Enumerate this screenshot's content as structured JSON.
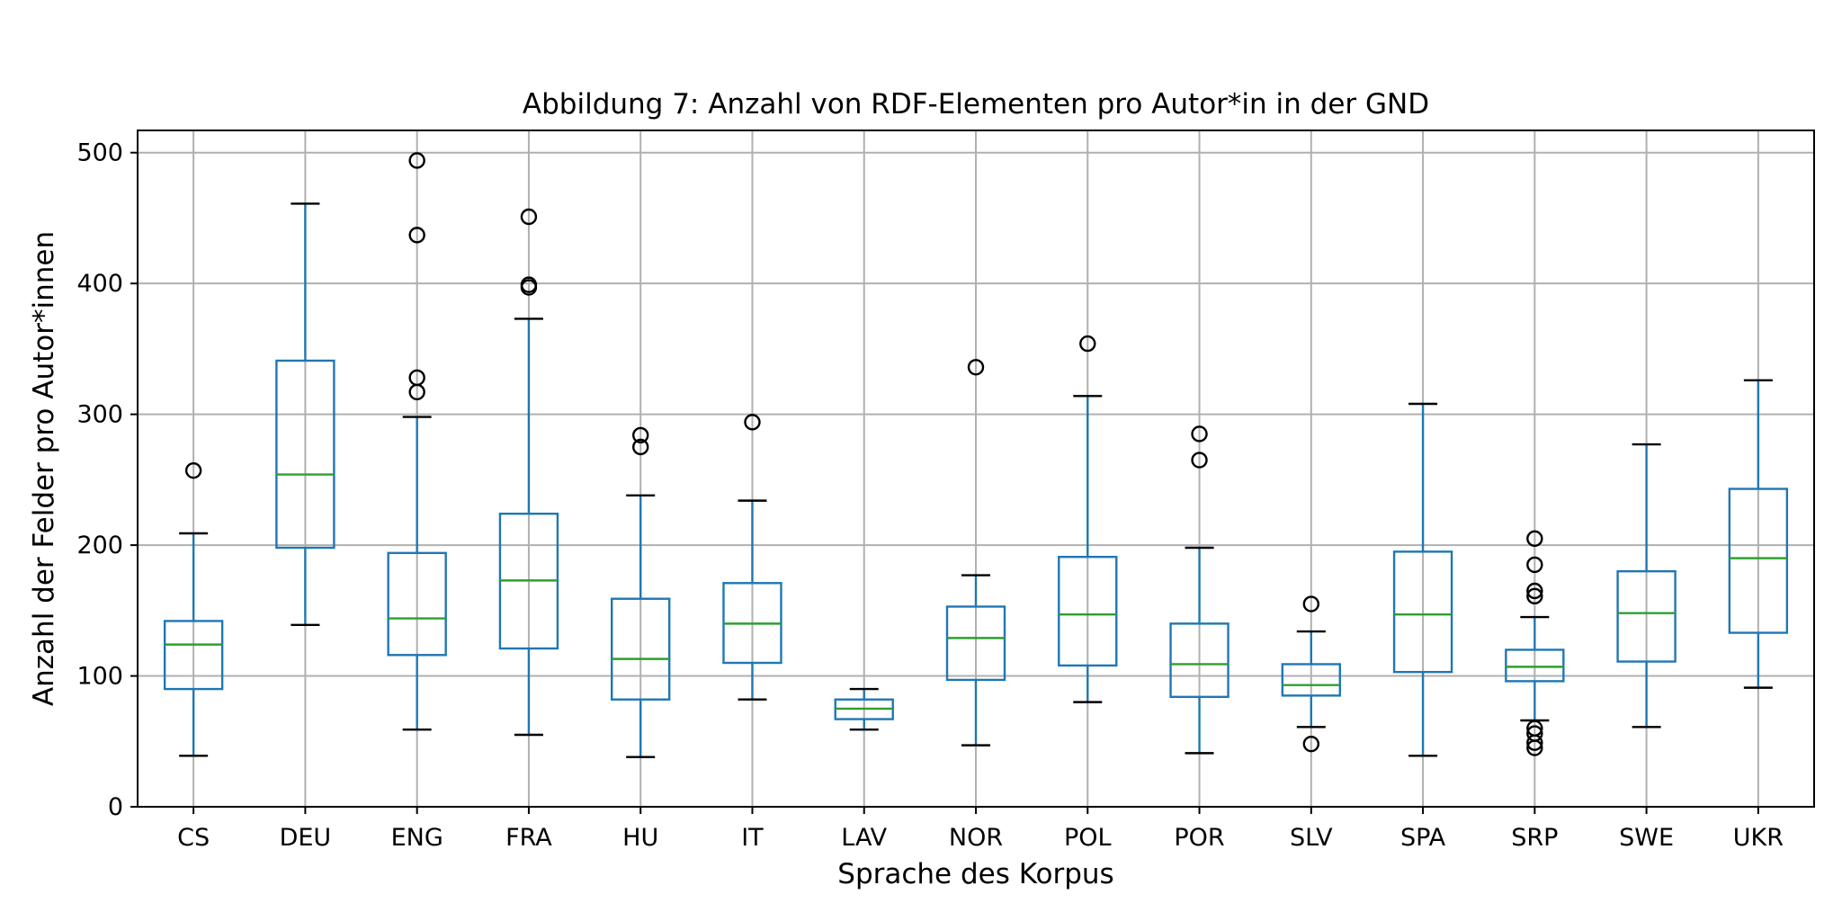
{
  "chart_data": {
    "type": "box",
    "title": "Abbildung 7: Anzahl von RDF-Elementen pro Autor*in in der GND",
    "xlabel": "Sprache des Korpus",
    "ylabel": "Anzahl der Felder pro Autor*innen",
    "ylim": [
      0,
      517
    ],
    "yticks": [
      0,
      100,
      200,
      300,
      400,
      500
    ],
    "grid": true,
    "colors": {
      "box": "#1f77b4",
      "median": "#2ca02c",
      "whisker_cap": "#000000",
      "flier": "#000000",
      "grid": "#b0b0b0"
    },
    "boxes": [
      {
        "category": "CS",
        "whislo": 39,
        "q1": 90,
        "med": 124,
        "q3": 142,
        "whishi": 209,
        "fliers": [
          257
        ]
      },
      {
        "category": "DEU",
        "whislo": 139,
        "q1": 198,
        "med": 254,
        "q3": 341,
        "whishi": 461,
        "fliers": []
      },
      {
        "category": "ENG",
        "whislo": 59,
        "q1": 116,
        "med": 144,
        "q3": 194,
        "whishi": 298,
        "fliers": [
          317,
          328,
          437,
          494
        ]
      },
      {
        "category": "FRA",
        "whislo": 55,
        "q1": 121,
        "med": 173,
        "q3": 224,
        "whishi": 373,
        "fliers": [
          397,
          399,
          451
        ]
      },
      {
        "category": "HU",
        "whislo": 38,
        "q1": 82,
        "med": 113,
        "q3": 159,
        "whishi": 238,
        "fliers": [
          275,
          284
        ]
      },
      {
        "category": "IT",
        "whislo": 82,
        "q1": 110,
        "med": 140,
        "q3": 171,
        "whishi": 234,
        "fliers": [
          294
        ]
      },
      {
        "category": "LAV",
        "whislo": 59,
        "q1": 67,
        "med": 75,
        "q3": 82,
        "whishi": 90,
        "fliers": []
      },
      {
        "category": "NOR",
        "whislo": 47,
        "q1": 97,
        "med": 129,
        "q3": 153,
        "whishi": 177,
        "fliers": [
          336
        ]
      },
      {
        "category": "POL",
        "whislo": 80,
        "q1": 108,
        "med": 147,
        "q3": 191,
        "whishi": 314,
        "fliers": [
          354
        ]
      },
      {
        "category": "POR",
        "whislo": 41,
        "q1": 84,
        "med": 109,
        "q3": 140,
        "whishi": 198,
        "fliers": [
          265,
          285
        ]
      },
      {
        "category": "SLV",
        "whislo": 61,
        "q1": 85,
        "med": 93,
        "q3": 109,
        "whishi": 134,
        "fliers": [
          48,
          155
        ]
      },
      {
        "category": "SPA",
        "whislo": 39,
        "q1": 103,
        "med": 147,
        "q3": 195,
        "whishi": 308,
        "fliers": []
      },
      {
        "category": "SRP",
        "whislo": 66,
        "q1": 96,
        "med": 107,
        "q3": 120,
        "whishi": 145,
        "fliers": [
          45,
          49,
          56,
          60,
          161,
          165,
          185,
          205
        ]
      },
      {
        "category": "SWE",
        "whislo": 61,
        "q1": 111,
        "med": 148,
        "q3": 180,
        "whishi": 277,
        "fliers": []
      },
      {
        "category": "UKR",
        "whislo": 91,
        "q1": 133,
        "med": 190,
        "q3": 243,
        "whishi": 326,
        "fliers": []
      }
    ]
  }
}
